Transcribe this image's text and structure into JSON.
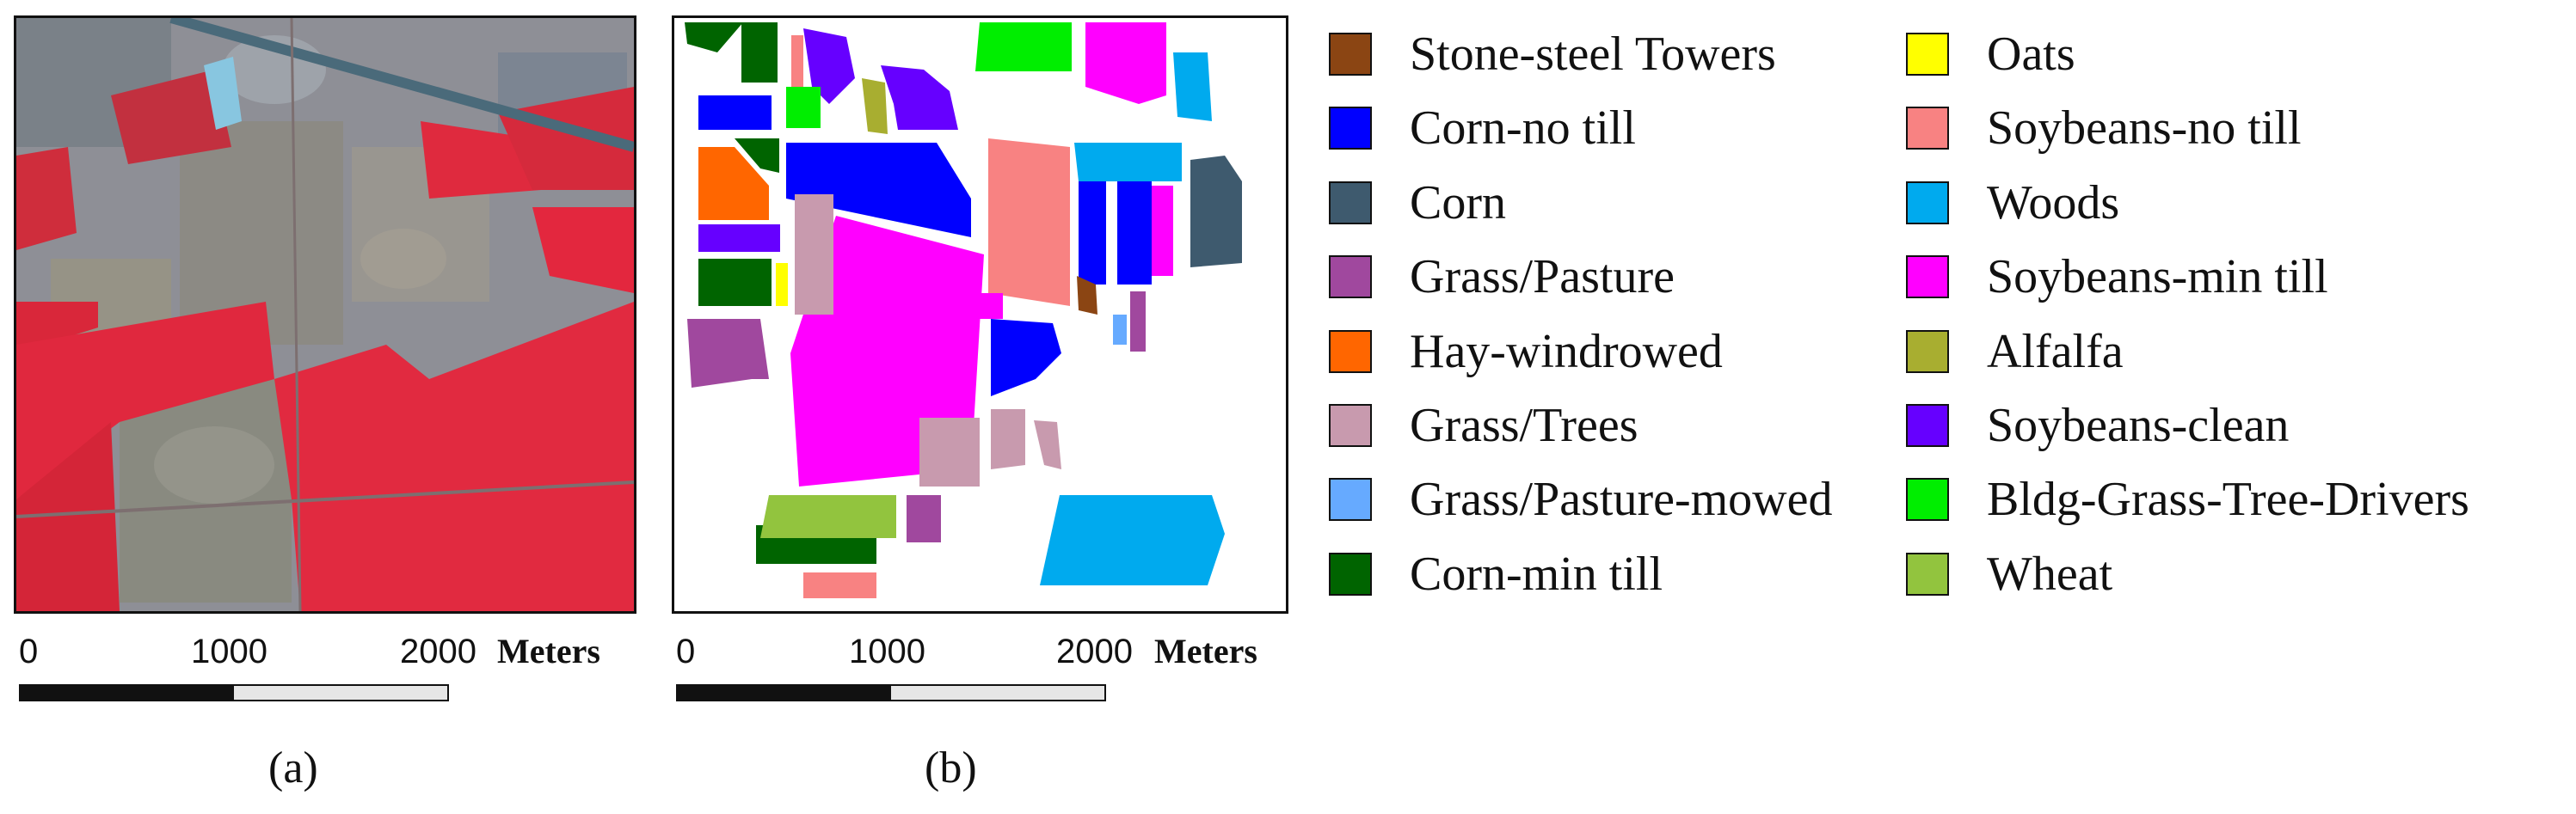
{
  "panels": {
    "a": {
      "caption": "(a)"
    },
    "b": {
      "caption": "(b)"
    }
  },
  "scale_bar": {
    "ticks": [
      "0",
      "1000",
      "2000"
    ],
    "unit": "Meters"
  },
  "legend": [
    {
      "label": "Stone-steel Towers",
      "color": "#8B4513"
    },
    {
      "label": "Corn-no till",
      "color": "#0000FF"
    },
    {
      "label": "Corn",
      "color": "#3E5A6E"
    },
    {
      "label": "Grass/Pasture",
      "color": "#A0489E"
    },
    {
      "label": "Hay-windrowed",
      "color": "#FF6600"
    },
    {
      "label": "Grass/Trees",
      "color": "#C89AAE"
    },
    {
      "label": "Grass/Pasture-mowed",
      "color": "#66AAFF"
    },
    {
      "label": "Corn-min till",
      "color": "#006400"
    },
    {
      "label": "Oats",
      "color": "#FFFF00"
    },
    {
      "label": "Soybeans-no till",
      "color": "#F88282"
    },
    {
      "label": "Woods",
      "color": "#00AAEE"
    },
    {
      "label": "Soybeans-min till",
      "color": "#FF00FF"
    },
    {
      "label": "Alfalfa",
      "color": "#A8AE30"
    },
    {
      "label": "Soybeans-clean",
      "color": "#6600FF"
    },
    {
      "label": "Bldg-Grass-Tree-Drivers",
      "color": "#00EE00"
    },
    {
      "label": "Wheat",
      "color": "#92C43E"
    }
  ]
}
